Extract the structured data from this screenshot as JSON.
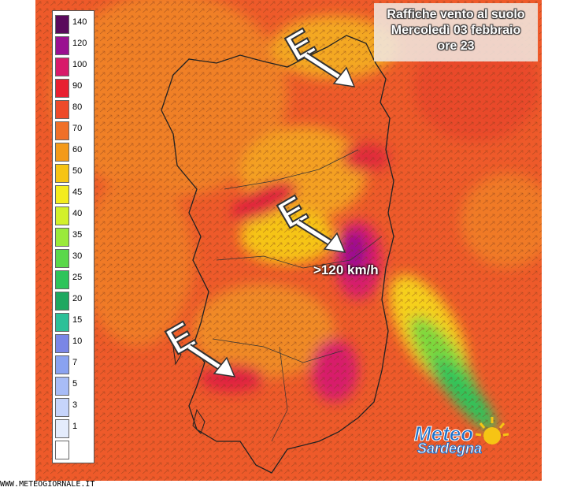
{
  "title": {
    "line1": "Raffiche vento al suolo",
    "line2": "Mercoledì 03 febbraio",
    "line3": "ore 23"
  },
  "legend": [
    {
      "label": "140",
      "color": "#5a0a5c"
    },
    {
      "label": "120",
      "color": "#9a1090"
    },
    {
      "label": "100",
      "color": "#d81a6a"
    },
    {
      "label": "90",
      "color": "#e82030"
    },
    {
      "label": "80",
      "color": "#ee4a2a"
    },
    {
      "label": "70",
      "color": "#f07028"
    },
    {
      "label": "60",
      "color": "#f49a1a"
    },
    {
      "label": "50",
      "color": "#f6c414"
    },
    {
      "label": "45",
      "color": "#f4ec1e"
    },
    {
      "label": "40",
      "color": "#d2f02a"
    },
    {
      "label": "35",
      "color": "#9aea3a"
    },
    {
      "label": "30",
      "color": "#5ad84a"
    },
    {
      "label": "25",
      "color": "#2ec45a"
    },
    {
      "label": "20",
      "color": "#1ea860"
    },
    {
      "label": "15",
      "color": "#2cc098"
    },
    {
      "label": "10",
      "color": "#7a86e6"
    },
    {
      "label": "7",
      "color": "#8aa2f0"
    },
    {
      "label": "5",
      "color": "#a8bcf6"
    },
    {
      "label": "3",
      "color": "#c6d4fa"
    },
    {
      "label": "1",
      "color": "#e4ecfc"
    },
    {
      "label": "",
      "color": "#ffffff"
    }
  ],
  "wind_label": "E",
  "callout": ">120 km/h",
  "site": "WWW.METEOGIORNALE.IT",
  "logo": {
    "top": "Meteo",
    "bottom": "Sardegna"
  }
}
